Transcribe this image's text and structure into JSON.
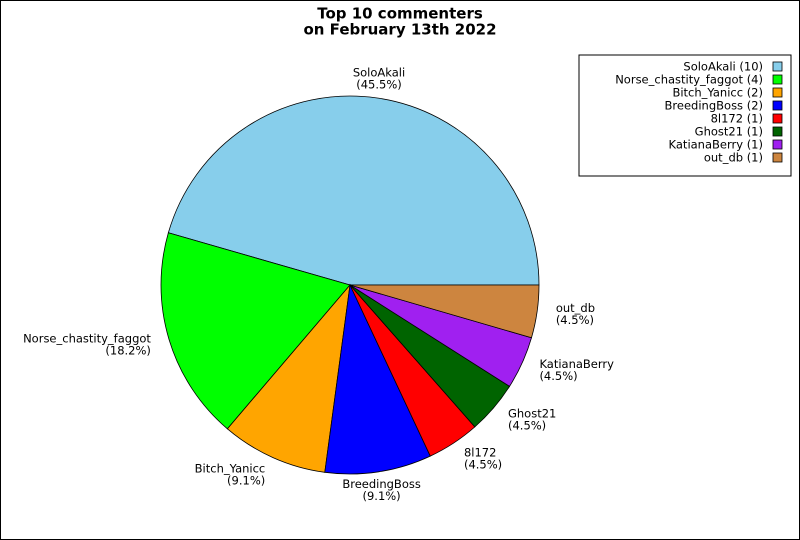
{
  "chart_data": {
    "type": "pie",
    "title": [
      "Top 10 commenters",
      "on February 13th 2022"
    ],
    "categories": [
      "SoloAkali",
      "Norse_chastity_faggot",
      "Bitch_Yanicc",
      "BreedingBoss",
      "8l172",
      "Ghost21",
      "KatianaBerry",
      "out_db"
    ],
    "values": [
      45.5,
      18.2,
      9.1,
      9.1,
      4.5,
      4.5,
      4.5,
      4.5
    ],
    "value_labels": [
      "(45.5%)",
      "(18.2%)",
      "(9.1%)",
      "(9.1%)",
      "(4.5%)",
      "(4.5%)",
      "(4.5%)",
      "(4.5%)"
    ],
    "legend_labels": [
      "SoloAkali (10)",
      "Norse_chastity_faggot (4)",
      "Bitch_Yanicc (2)",
      "BreedingBoss (2)",
      "8l172 (1)",
      "Ghost21 (1)",
      "KatianaBerry (1)",
      "out_db (1)"
    ],
    "colors": [
      "#87ceeb",
      "#00ff00",
      "#ffa500",
      "#0000ff",
      "#ff0000",
      "#006400",
      "#a020f0",
      "#cd853f"
    ],
    "legend": "upper right"
  }
}
